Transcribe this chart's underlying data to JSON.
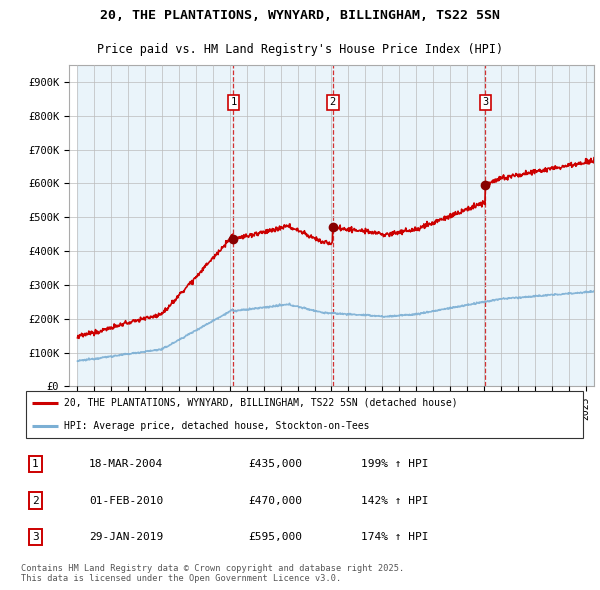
{
  "title1": "20, THE PLANTATIONS, WYNYARD, BILLINGHAM, TS22 5SN",
  "title2": "Price paid vs. HM Land Registry's House Price Index (HPI)",
  "legend_line1": "20, THE PLANTATIONS, WYNYARD, BILLINGHAM, TS22 5SN (detached house)",
  "legend_line2": "HPI: Average price, detached house, Stockton-on-Tees",
  "hpi_color": "#7bafd4",
  "price_color": "#cc0000",
  "vline_color": "#cc0000",
  "shade_color": "#d6e4f0",
  "purchases": [
    {
      "label": "1",
      "date_num": 2004.21,
      "price": 435000,
      "pct": "199%",
      "date_str": "18-MAR-2004"
    },
    {
      "label": "2",
      "date_num": 2010.08,
      "price": 470000,
      "pct": "142%",
      "date_str": "01-FEB-2010"
    },
    {
      "label": "3",
      "date_num": 2019.08,
      "price": 595000,
      "pct": "174%",
      "date_str": "29-JAN-2019"
    }
  ],
  "ylim": [
    0,
    950000
  ],
  "xlim": [
    1994.5,
    2025.5
  ],
  "yticks": [
    0,
    100000,
    200000,
    300000,
    400000,
    500000,
    600000,
    700000,
    800000,
    900000
  ],
  "ytick_labels": [
    "£0",
    "£100K",
    "£200K",
    "£300K",
    "£400K",
    "£500K",
    "£600K",
    "£700K",
    "£800K",
    "£900K"
  ],
  "footer": "Contains HM Land Registry data © Crown copyright and database right 2025.\nThis data is licensed under the Open Government Licence v3.0."
}
